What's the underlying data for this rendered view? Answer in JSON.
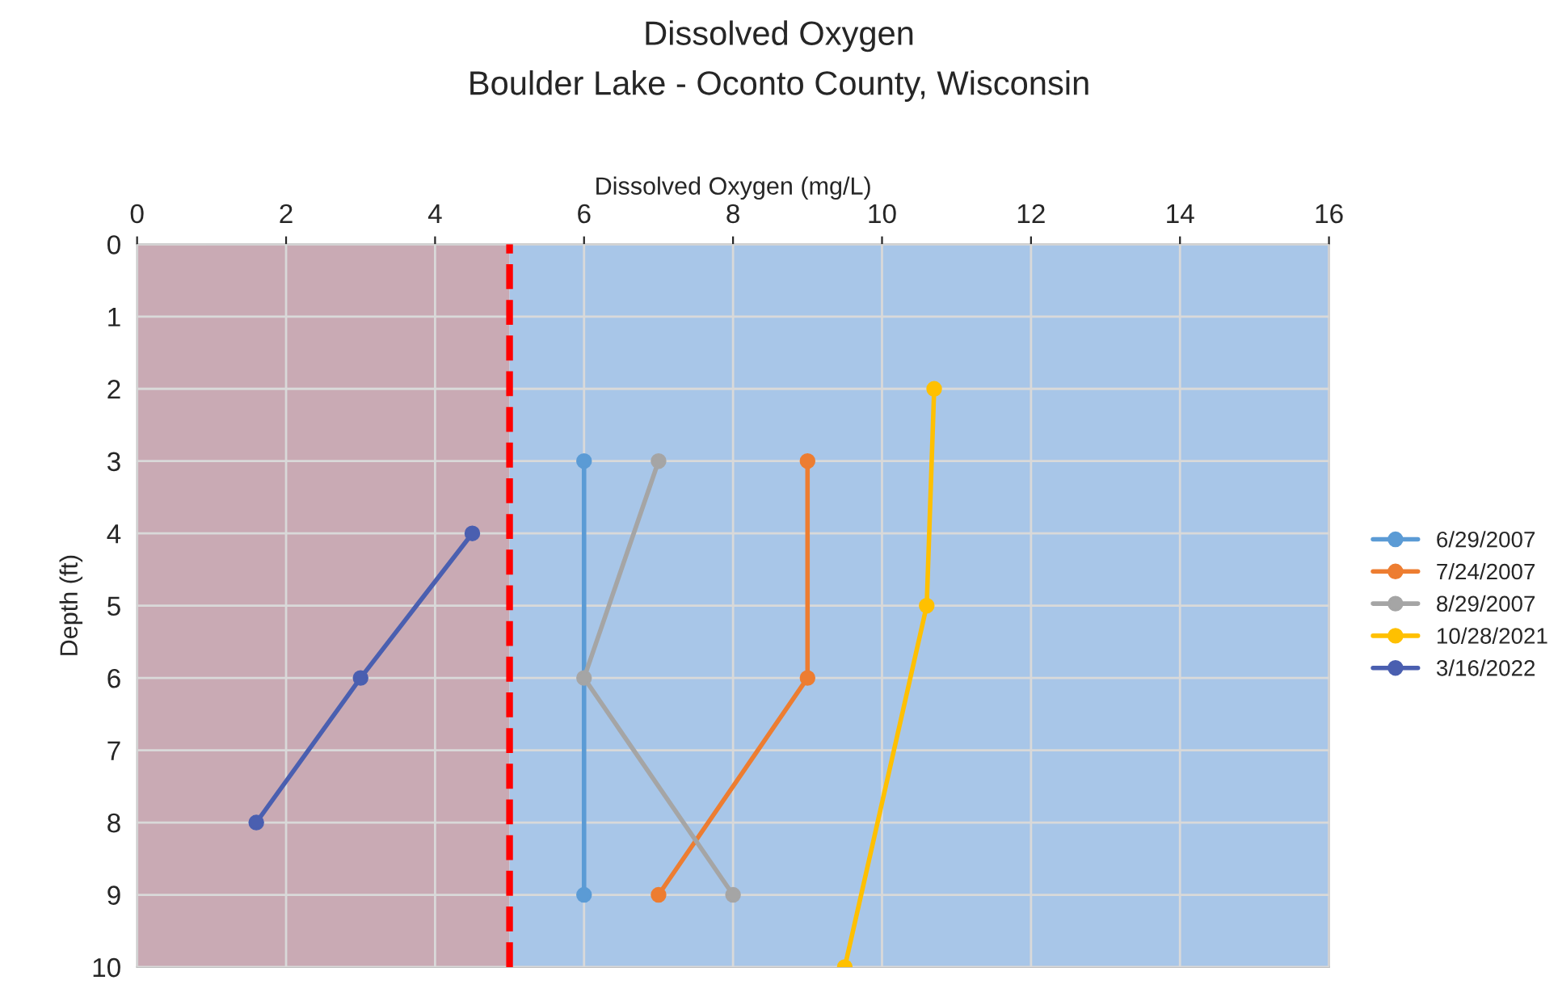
{
  "chart_data": {
    "type": "line",
    "title": "Dissolved Oxygen",
    "subtitle": "Boulder Lake - Oconto County, Wisconsin",
    "xlabel": "Dissolved Oxygen (mg/L)",
    "ylabel": "Depth (ft)",
    "series": [
      {
        "name": "6/29/2007",
        "color": "#5b9bd5",
        "x": [
          6,
          6
        ],
        "values": [
          3,
          9
        ]
      },
      {
        "name": "7/24/2007",
        "color": "#ed7d31",
        "x": [
          9,
          9,
          7
        ],
        "values": [
          3,
          6,
          9
        ]
      },
      {
        "name": "8/29/2007",
        "color": "#a5a5a5",
        "x": [
          7,
          6,
          8
        ],
        "values": [
          3,
          6,
          9
        ]
      },
      {
        "name": "10/28/2021",
        "color": "#ffc000",
        "x": [
          10.7,
          10.6,
          9.5
        ],
        "values": [
          2,
          5,
          10
        ]
      },
      {
        "name": "3/16/2022",
        "color": "#4a5fb0",
        "x": [
          4.5,
          3,
          1.6
        ],
        "values": [
          4,
          6,
          8
        ]
      }
    ],
    "xlim": [
      0,
      16
    ],
    "xticks": [
      0,
      2,
      4,
      6,
      8,
      10,
      12,
      14,
      16
    ],
    "ylim": [
      10,
      0
    ],
    "yticks": [
      0,
      1,
      2,
      3,
      4,
      5,
      6,
      7,
      8,
      9,
      10
    ],
    "ref_lines": [
      {
        "axis": "x",
        "value": 5,
        "color": "#ff0000",
        "line_style": "dashed"
      }
    ],
    "bands": [
      {
        "axis": "x",
        "from": 0,
        "to": 5,
        "color": "#c9aab4"
      },
      {
        "axis": "x",
        "from": 5,
        "to": 16,
        "color": "#a8c6e8"
      }
    ],
    "grid": true,
    "legend": "right",
    "marker": "circle",
    "line_style": "solid"
  }
}
